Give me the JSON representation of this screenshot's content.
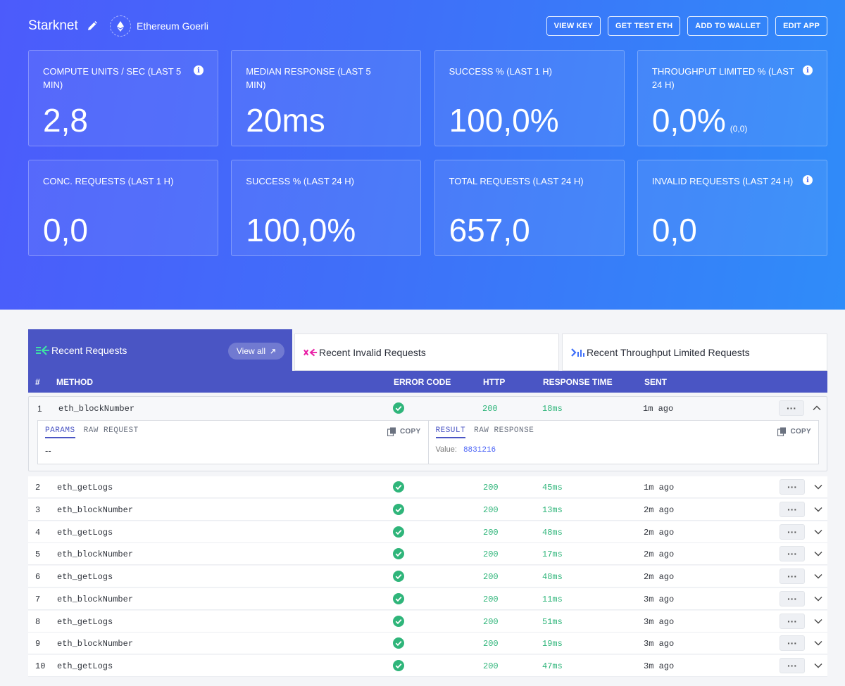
{
  "header": {
    "app_name": "Starknet",
    "network": "Ethereum Goerli",
    "buttons": [
      "VIEW KEY",
      "GET TEST ETH",
      "ADD TO WALLET",
      "EDIT APP"
    ]
  },
  "stats": [
    {
      "label": "COMPUTE UNITS / SEC (LAST 5 MIN)",
      "value": "2,8",
      "sub": "",
      "info": true
    },
    {
      "label": "MEDIAN RESPONSE (LAST 5 MIN)",
      "value": "20ms",
      "sub": "",
      "info": false
    },
    {
      "label": "SUCCESS % (LAST 1 H)",
      "value": "100,0%",
      "sub": "",
      "info": false
    },
    {
      "label": "THROUGHPUT LIMITED % (LAST 24 H)",
      "value": "0,0%",
      "sub": "(0,0)",
      "info": true
    },
    {
      "label": "CONC. REQUESTS (LAST 1 H)",
      "value": "0,0",
      "sub": "",
      "info": false
    },
    {
      "label": "SUCCESS % (LAST 24 H)",
      "value": "100,0%",
      "sub": "",
      "info": false
    },
    {
      "label": "TOTAL REQUESTS (LAST 24 H)",
      "value": "657,0",
      "sub": "",
      "info": false
    },
    {
      "label": "INVALID REQUESTS (LAST 24 H)",
      "value": "0,0",
      "sub": "",
      "info": true
    }
  ],
  "tabs": {
    "recent": "Recent Requests",
    "view_all": "View all",
    "invalid": "Recent Invalid Requests",
    "throughput": "Recent Throughput Limited Requests"
  },
  "table": {
    "headers": {
      "idx": "#",
      "method": "METHOD",
      "error": "ERROR CODE",
      "http": "HTTP",
      "resp": "RESPONSE TIME",
      "sent": "SENT"
    },
    "more_label": "···",
    "expanded": {
      "params_tabs": [
        "PARAMS",
        "RAW REQUEST"
      ],
      "params_body": "--",
      "result_tabs": [
        "RESULT",
        "RAW RESPONSE"
      ],
      "copy_label": "COPY",
      "value_label": "Value:",
      "value": "8831216"
    },
    "rows": [
      {
        "idx": "1",
        "method": "eth_blockNumber",
        "http": "200",
        "resp": "18ms",
        "sent": "1m ago"
      },
      {
        "idx": "2",
        "method": "eth_getLogs",
        "http": "200",
        "resp": "45ms",
        "sent": "1m ago"
      },
      {
        "idx": "3",
        "method": "eth_blockNumber",
        "http": "200",
        "resp": "13ms",
        "sent": "2m ago"
      },
      {
        "idx": "4",
        "method": "eth_getLogs",
        "http": "200",
        "resp": "48ms",
        "sent": "2m ago"
      },
      {
        "idx": "5",
        "method": "eth_blockNumber",
        "http": "200",
        "resp": "17ms",
        "sent": "2m ago"
      },
      {
        "idx": "6",
        "method": "eth_getLogs",
        "http": "200",
        "resp": "48ms",
        "sent": "2m ago"
      },
      {
        "idx": "7",
        "method": "eth_blockNumber",
        "http": "200",
        "resp": "11ms",
        "sent": "3m ago"
      },
      {
        "idx": "8",
        "method": "eth_getLogs",
        "http": "200",
        "resp": "51ms",
        "sent": "3m ago"
      },
      {
        "idx": "9",
        "method": "eth_blockNumber",
        "http": "200",
        "resp": "19ms",
        "sent": "3m ago"
      },
      {
        "idx": "10",
        "method": "eth_getLogs",
        "http": "200",
        "resp": "47ms",
        "sent": "3m ago"
      }
    ]
  },
  "colors": {
    "accent": "#4a55c4",
    "success": "#2fb57a",
    "hero_start": "#4c5bfb",
    "hero_end": "#2f8cf9"
  }
}
